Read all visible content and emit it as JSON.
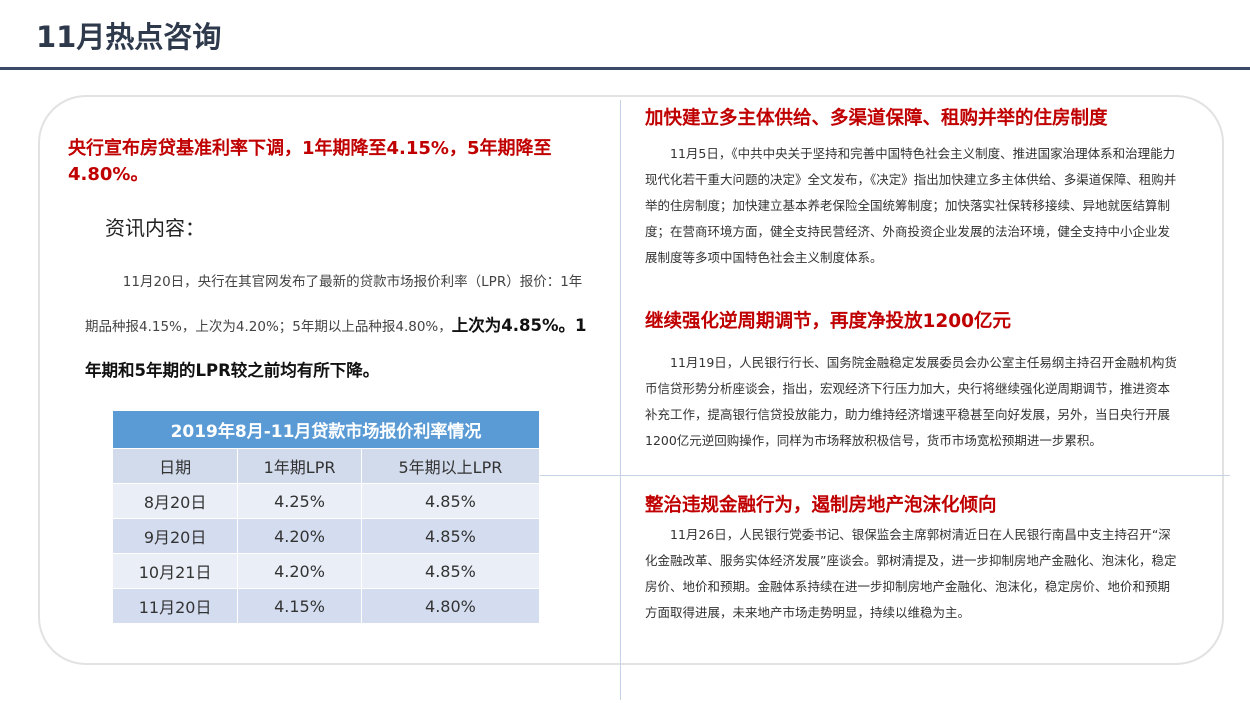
{
  "header": {
    "title": "11月热点咨询"
  },
  "left": {
    "headline": "央行宣布房贷基准利率下调，1年期降至4.15%，5年期降至4.80%。",
    "section_label": "资讯内容：",
    "body_normal": "11月20日，央行在其官网发布了最新的贷款市场报价利率（LPR）报价：1年期品种报4.15%，上次为4.20%；5年期以上品种报4.80%，",
    "body_bold": "上次为4.85%。1年期和5年期的LPR较之前均有所下降。"
  },
  "table": {
    "title": "2019年8月-11月贷款市场报价利率情况",
    "header": [
      "日期",
      "1年期LPR",
      "5年期以上LPR"
    ],
    "rows": [
      [
        "8月20日",
        "4.25%",
        "4.85%"
      ],
      [
        "9月20日",
        "4.20%",
        "4.85%"
      ],
      [
        "10月21日",
        "4.20%",
        "4.85%"
      ],
      [
        "11月20日",
        "4.15%",
        "4.80%"
      ]
    ]
  },
  "articles": [
    {
      "title": "加快建立多主体供给、多渠道保障、租购并举的住房制度",
      "body": "11月5日，《中共中央关于坚持和完善中国特色社会主义制度、推进国家治理体系和治理能力现代化若干重大问题的决定》全文发布，《决定》指出加快建立多主体供给、多渠道保障、租购并举的住房制度；加快建立基本养老保险全国统筹制度；加快落实社保转移接续、异地就医结算制度；在营商环境方面，健全支持民营经济、外商投资企业发展的法治环境，健全支持中小企业发展制度等多项中国特色社会主义制度体系。"
    },
    {
      "title": "继续强化逆周期调节，再度净投放1200亿元",
      "body": "11月19日，人民银行行长、国务院金融稳定发展委员会办公室主任易纲主持召开金融机构货币信贷形势分析座谈会，指出，宏观经济下行压力加大，央行将继续强化逆周期调节，推进资本补充工作，提高银行信贷投放能力，助力维持经济增速平稳甚至向好发展，另外，当日央行开展1200亿元逆回购操作，同样为市场释放积极信号，货币市场宽松预期进一步累积。"
    },
    {
      "title": "整治违规金融行为，遏制房地产泡沫化倾向",
      "body": "11月26日，人民银行党委书记、银保监会主席郭树清近日在人民银行南昌中支主持召开“深化金融改革、服务实体经济发展”座谈会。郭树清提及，进一步抑制房地产金融化、泡沫化，稳定房价、地价和预期。金融体系持续在进一步抑制房地产金融化、泡沫化，稳定房价、地价和预期方面取得进展，未来地产市场走势明显，持续以维稳为主。"
    }
  ]
}
